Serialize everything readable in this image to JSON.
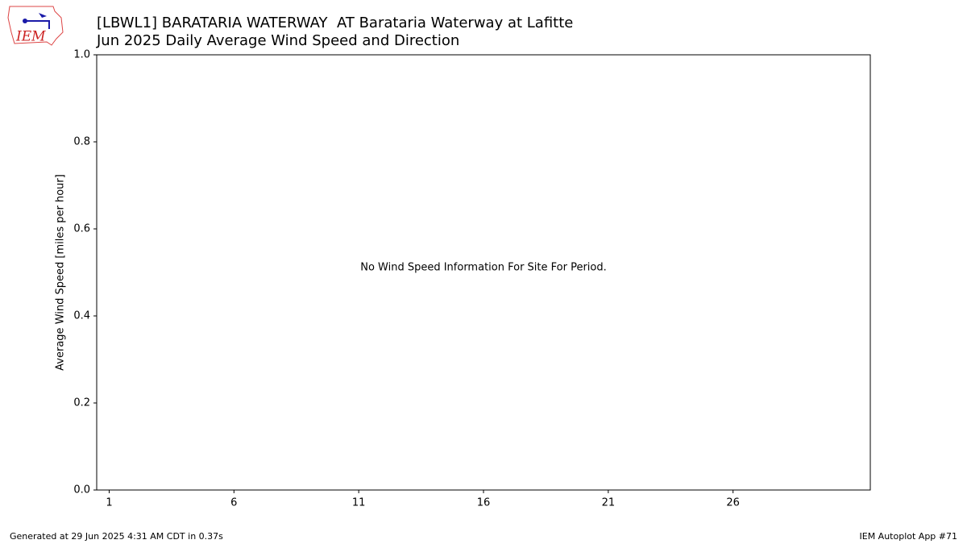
{
  "logo": "IEM",
  "chart_data": {
    "type": "bar",
    "title": "[LBWL1] BARATARIA WATERWAY  AT Barataria Waterway at Lafitte",
    "subtitle": "Jun 2025 Daily Average Wind Speed and Direction",
    "y_label": "Average Wind Speed [miles per hour]",
    "annotation": "No Wind Speed Information For Site For Period.",
    "xlim": [
      0.5,
      31.5
    ],
    "xticks": [
      1,
      6,
      11,
      16,
      21,
      26
    ],
    "ylim": [
      0,
      1
    ],
    "yticks": [
      {
        "value": 0,
        "label": "0.0"
      },
      0.2,
      0.4,
      0.6,
      0.8,
      {
        "value": 1,
        "label": "1.0"
      }
    ],
    "grid": false,
    "footer_left": "Generated at 29 Jun 2025 4:31 AM CDT in 0.37s",
    "footer_right": "IEM Autoplot App #71"
  }
}
